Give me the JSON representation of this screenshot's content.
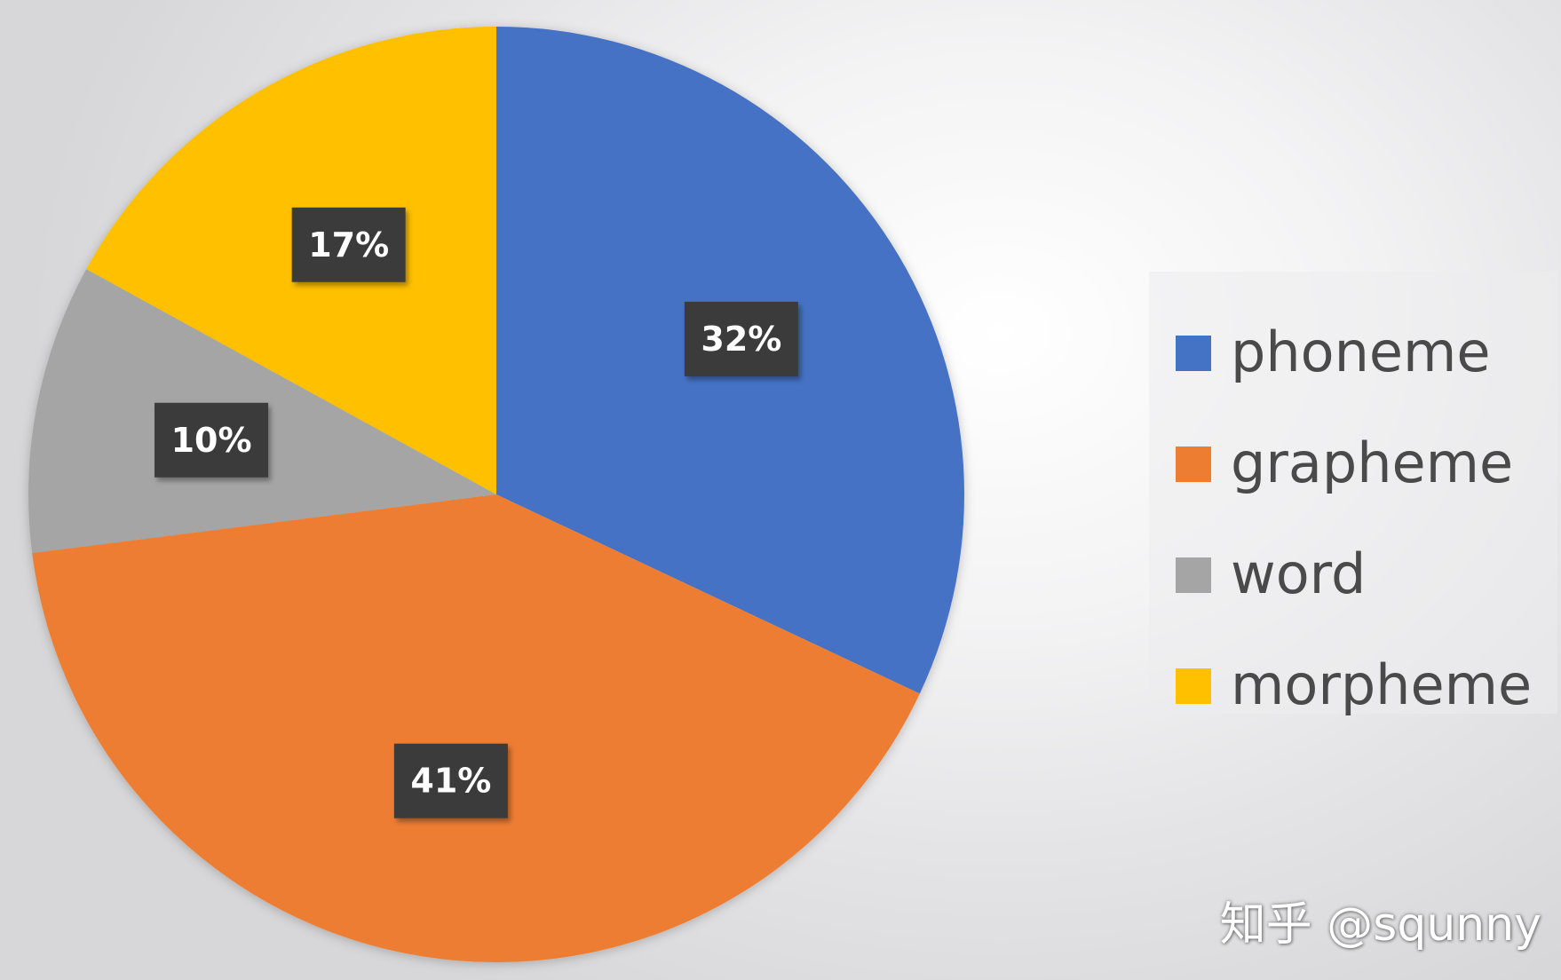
{
  "chart_data": {
    "type": "pie",
    "title": "",
    "categories": [
      "phoneme",
      "grapheme",
      "word",
      "morpheme"
    ],
    "values": [
      32,
      41,
      10,
      17
    ],
    "value_labels": [
      "32%",
      "41%",
      "10%",
      "17%"
    ],
    "colors": [
      "#4472C4",
      "#ED7D31",
      "#A5A5A5",
      "#FFC000"
    ],
    "start_angle_deg": 0,
    "direction": "clockwise",
    "legend": {
      "placement": "right",
      "entries": [
        "phoneme",
        "grapheme",
        "word",
        "morpheme"
      ]
    }
  },
  "watermark": "知乎 @squnny"
}
